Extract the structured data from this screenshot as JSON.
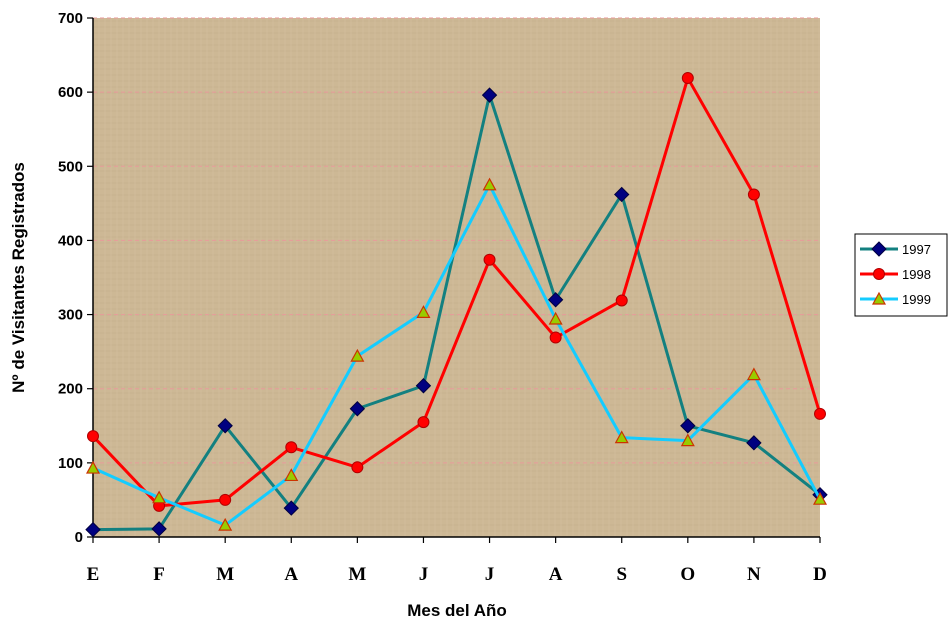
{
  "chart_data": {
    "type": "line",
    "title": "",
    "xlabel": "Mes del Año",
    "ylabel": "Nº de Visitantes Registrados",
    "categories": [
      "E",
      "F",
      "M",
      "A",
      "M",
      "J",
      "J",
      "A",
      "S",
      "O",
      "N",
      "D"
    ],
    "ylim": [
      0,
      700
    ],
    "yticks": [
      0,
      100,
      200,
      300,
      400,
      500,
      600,
      700
    ],
    "grid": "horizontal dashed",
    "legend_position": "right",
    "plot_background": "#cdb895",
    "series": [
      {
        "name": "1997",
        "color": "#138080",
        "marker": "diamond",
        "marker_color": "#000080",
        "values": [
          10,
          11,
          150,
          39,
          173,
          204,
          596,
          320,
          462,
          150,
          127,
          57
        ]
      },
      {
        "name": "1998",
        "color": "#ff0000",
        "marker": "circle",
        "marker_color": "#ff0000",
        "values": [
          136,
          42,
          50,
          121,
          94,
          155,
          374,
          269,
          319,
          619,
          462,
          166
        ]
      },
      {
        "name": "1999",
        "color": "#14ccff",
        "marker": "triangle",
        "marker_color": "#99cc00",
        "marker_edge": "#cc3300",
        "values": [
          93,
          53,
          16,
          83,
          244,
          303,
          475,
          294,
          134,
          130,
          219,
          51
        ]
      }
    ]
  }
}
